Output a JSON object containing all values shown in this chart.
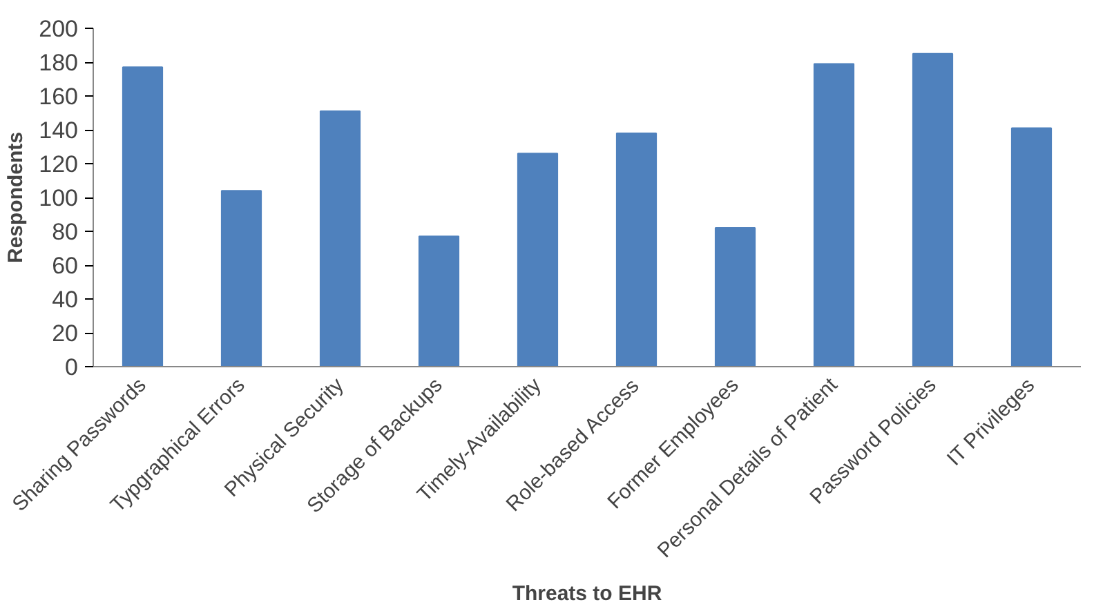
{
  "chart_data": {
    "type": "bar",
    "xlabel": "Threats to EHR",
    "ylabel": "Respondents",
    "categories": [
      "Sharing Passwords",
      "Typgraphical Errors",
      "Physical Security",
      "Storage of Backups",
      "Timely-Availability",
      "Role-based Access",
      "Former Employees",
      "Personal Details of Patient",
      "Password Policies",
      "IT Privileges"
    ],
    "values": [
      177,
      104,
      151,
      77,
      126,
      138,
      82,
      179,
      185,
      141
    ],
    "color": "#4f81bd",
    "ylim": [
      0,
      200
    ],
    "yticks": [
      0,
      20,
      40,
      60,
      80,
      100,
      120,
      140,
      160,
      180,
      200
    ],
    "grid": false
  }
}
